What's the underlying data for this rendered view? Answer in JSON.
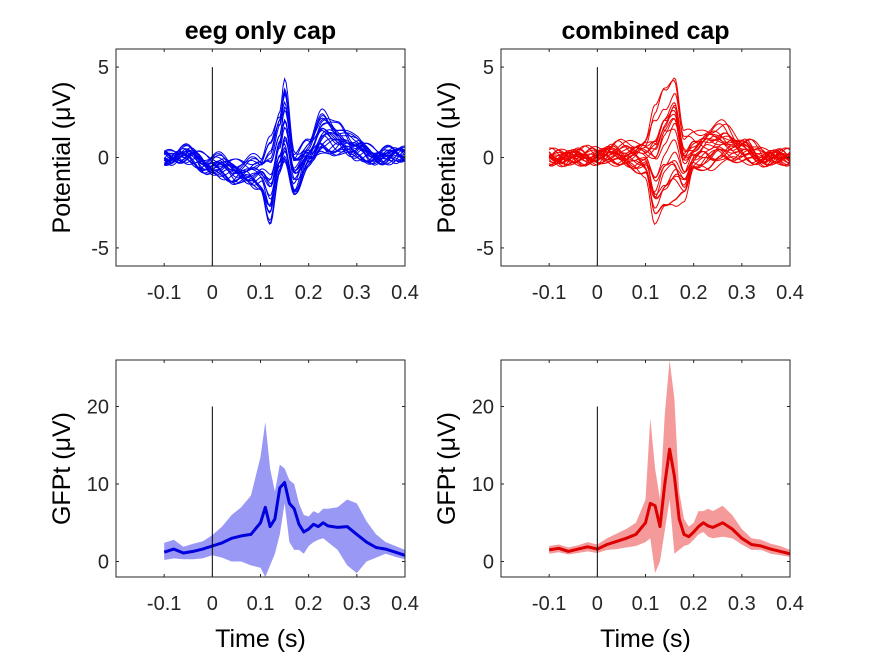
{
  "chart_data": [
    {
      "type": "line",
      "title": "eeg only cap",
      "ylabel": "Potential (μV)",
      "xlabel": "",
      "xlim": [
        -0.2,
        0.4
      ],
      "ylim": [
        -6,
        6
      ],
      "xticks": [
        -0.1,
        0,
        0.1,
        0.2,
        0.3,
        0.4
      ],
      "xtick_labels": [
        "-0.1",
        "0",
        "0.1",
        "0.2",
        "0.3",
        "0.4"
      ],
      "yticks": [
        -5,
        0,
        5
      ],
      "ytick_labels": [
        "-5",
        "0",
        "5"
      ],
      "color": "#0000ee",
      "stimulus_line_x": 0,
      "channels": 24,
      "profile": {
        "x": [
          -0.1,
          -0.05,
          0,
          0.05,
          0.1,
          0.12,
          0.14,
          0.15,
          0.17,
          0.2,
          0.23,
          0.26,
          0.3,
          0.35,
          0.4
        ],
        "mean": [
          0.0,
          0.1,
          -0.5,
          -0.8,
          -1.0,
          -1.5,
          0.5,
          1.5,
          -1.0,
          0.2,
          1.2,
          1.0,
          0.4,
          0.0,
          0.2
        ],
        "spread": [
          0.2,
          0.3,
          0.5,
          0.6,
          0.9,
          2.8,
          2.0,
          2.6,
          1.3,
          0.8,
          1.2,
          0.9,
          0.5,
          0.3,
          0.2
        ]
      }
    },
    {
      "type": "line",
      "title": "combined cap",
      "ylabel": "Potential (μV)",
      "xlabel": "",
      "xlim": [
        -0.2,
        0.4
      ],
      "ylim": [
        -6,
        6
      ],
      "xticks": [
        -0.1,
        0,
        0.1,
        0.2,
        0.3,
        0.4
      ],
      "xtick_labels": [
        "-0.1",
        "0",
        "0.1",
        "0.2",
        "0.3",
        "0.4"
      ],
      "yticks": [
        -5,
        0,
        5
      ],
      "ytick_labels": [
        "-5",
        "0",
        "5"
      ],
      "color": "#ee0000",
      "stimulus_line_x": 0,
      "channels": 24,
      "profile": {
        "x": [
          -0.1,
          -0.05,
          0,
          0.05,
          0.1,
          0.12,
          0.14,
          0.16,
          0.18,
          0.2,
          0.23,
          0.26,
          0.3,
          0.35,
          0.4
        ],
        "mean": [
          0.0,
          0.0,
          0.1,
          0.2,
          0.0,
          -0.5,
          0.5,
          1.0,
          -0.5,
          0.3,
          0.5,
          0.8,
          0.4,
          0.0,
          0.0
        ],
        "spread": [
          0.2,
          0.3,
          0.3,
          0.5,
          1.0,
          3.2,
          3.5,
          3.8,
          1.8,
          1.0,
          1.2,
          1.0,
          0.6,
          0.3,
          0.2
        ]
      }
    },
    {
      "type": "area",
      "title": "",
      "ylabel": "GFPt (μV)",
      "xlabel": "Time (s)",
      "xlim": [
        -0.2,
        0.4
      ],
      "ylim": [
        -2,
        26
      ],
      "xticks": [
        -0.1,
        0,
        0.1,
        0.2,
        0.3,
        0.4
      ],
      "xtick_labels": [
        "-0.1",
        "0",
        "0.1",
        "0.2",
        "0.3",
        "0.4"
      ],
      "yticks": [
        0,
        10,
        20
      ],
      "ytick_labels": [
        "0",
        "10",
        "20"
      ],
      "color": "#0000dd",
      "band_color": "#9999f5",
      "stimulus_line_x": 0,
      "series": [
        {
          "x": [
            -0.1,
            -0.08,
            -0.06,
            -0.04,
            -0.02,
            0,
            0.02,
            0.04,
            0.06,
            0.08,
            0.1,
            0.11,
            0.12,
            0.13,
            0.14,
            0.15,
            0.16,
            0.17,
            0.18,
            0.19,
            0.2,
            0.21,
            0.22,
            0.23,
            0.24,
            0.26,
            0.28,
            0.3,
            0.32,
            0.34,
            0.36,
            0.38,
            0.4
          ],
          "mean": [
            1.2,
            1.6,
            1.1,
            1.3,
            1.6,
            2.0,
            2.4,
            3.0,
            3.3,
            3.5,
            5.0,
            7.0,
            4.5,
            5.5,
            9.5,
            10.2,
            7.5,
            6.8,
            4.8,
            3.8,
            4.2,
            4.8,
            4.5,
            5.0,
            4.6,
            4.4,
            4.5,
            3.5,
            2.5,
            1.8,
            1.6,
            1.2,
            0.8
          ],
          "lower": [
            0.2,
            0.4,
            0.3,
            0.3,
            0.4,
            0.8,
            0.5,
            0.0,
            0.0,
            -0.5,
            -0.8,
            -2.0,
            -0.5,
            1.0,
            3.5,
            7.5,
            2.5,
            1.5,
            1.5,
            1.0,
            2.0,
            2.5,
            2.8,
            3.0,
            2.5,
            1.5,
            -0.5,
            -1.5,
            0.0,
            0.5,
            1.0,
            0.6,
            0.3
          ],
          "upper": [
            2.4,
            2.8,
            1.9,
            2.3,
            2.6,
            3.4,
            4.5,
            6.0,
            7.0,
            8.5,
            13.5,
            18.0,
            12.0,
            9.0,
            12.5,
            12.0,
            10.5,
            10.0,
            7.5,
            6.0,
            5.8,
            6.5,
            6.2,
            6.8,
            6.8,
            7.0,
            8.0,
            7.5,
            5.2,
            3.5,
            2.5,
            2.0,
            1.5
          ]
        }
      ]
    },
    {
      "type": "area",
      "title": "",
      "ylabel": "GFPt (μV)",
      "xlabel": "Time (s)",
      "xlim": [
        -0.2,
        0.4
      ],
      "ylim": [
        -2,
        26
      ],
      "xticks": [
        -0.1,
        0,
        0.1,
        0.2,
        0.3,
        0.4
      ],
      "xtick_labels": [
        "-0.1",
        "0",
        "0.1",
        "0.2",
        "0.3",
        "0.4"
      ],
      "yticks": [
        0,
        10,
        20
      ],
      "ytick_labels": [
        "0",
        "10",
        "20"
      ],
      "color": "#dd0000",
      "band_color": "#f59a9a",
      "stimulus_line_x": 0,
      "series": [
        {
          "x": [
            -0.1,
            -0.08,
            -0.06,
            -0.04,
            -0.02,
            0,
            0.02,
            0.04,
            0.06,
            0.08,
            0.1,
            0.11,
            0.12,
            0.13,
            0.14,
            0.15,
            0.16,
            0.17,
            0.18,
            0.19,
            0.2,
            0.21,
            0.22,
            0.23,
            0.24,
            0.26,
            0.28,
            0.3,
            0.32,
            0.34,
            0.36,
            0.38,
            0.4
          ],
          "mean": [
            1.5,
            1.7,
            1.3,
            1.6,
            1.9,
            1.6,
            2.2,
            2.6,
            3.0,
            3.5,
            5.0,
            7.5,
            7.2,
            4.5,
            10.0,
            14.5,
            11.0,
            5.5,
            3.5,
            3.2,
            3.8,
            4.5,
            5.0,
            4.6,
            4.4,
            5.0,
            4.2,
            3.0,
            2.2,
            2.0,
            1.6,
            1.3,
            1.0
          ],
          "lower": [
            1.0,
            1.2,
            0.9,
            1.1,
            1.3,
            1.1,
            1.5,
            1.6,
            1.8,
            2.0,
            2.5,
            3.0,
            -1.5,
            0.0,
            4.0,
            8.0,
            1.0,
            1.5,
            2.0,
            2.2,
            2.8,
            3.5,
            3.8,
            3.2,
            3.0,
            3.2,
            3.0,
            2.2,
            1.5,
            1.5,
            1.0,
            0.8,
            0.6
          ],
          "upper": [
            2.0,
            2.2,
            1.8,
            2.1,
            2.5,
            2.2,
            3.0,
            3.6,
            4.2,
            5.0,
            8.0,
            18.5,
            12.0,
            8.0,
            19.0,
            26.0,
            21.0,
            9.0,
            5.5,
            4.5,
            5.0,
            6.5,
            6.5,
            6.8,
            6.5,
            7.2,
            6.0,
            4.2,
            3.0,
            2.8,
            2.3,
            2.0,
            1.5
          ]
        }
      ]
    }
  ]
}
